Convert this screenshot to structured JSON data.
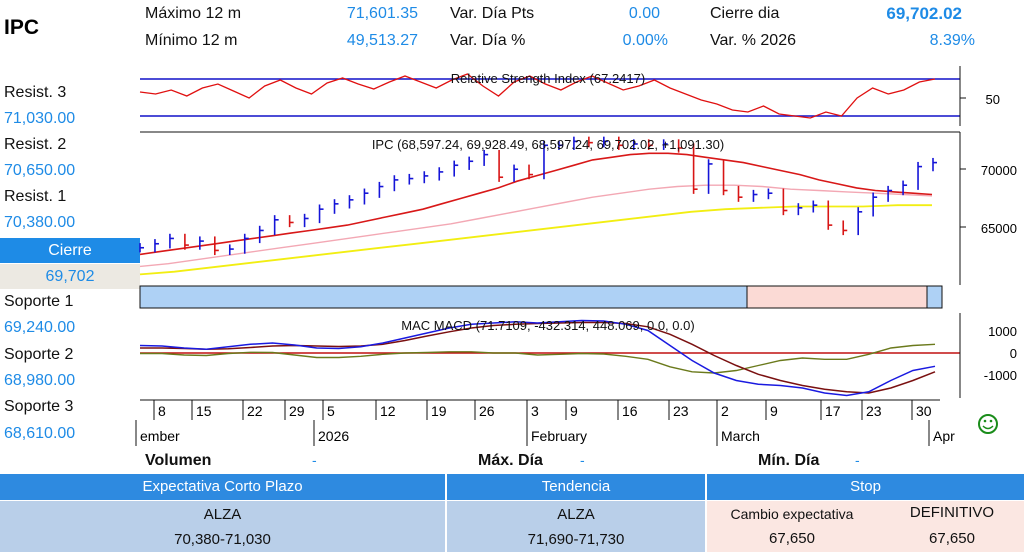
{
  "header": {
    "title": "IPC",
    "max12_label": "Máximo 12 m",
    "max12_value": "71,601.35",
    "min12_label": "Mínimo 12 m",
    "min12_value": "49,513.27",
    "vdp_label": "Var. Día Pts",
    "vdp_value": "0.00",
    "vdpct_label": "Var. Día %",
    "vdpct_value": "0.00%",
    "cierre_label": "Cierre dia",
    "cierre_value": "69,702.02",
    "var2026_label": "Var. % 2026",
    "var2026_value": "8.39%"
  },
  "sidebar": {
    "r3_label": "Resist. 3",
    "r3_value": "71,030.00",
    "r2_label": "Resist. 2",
    "r2_value": "70,650.00",
    "r1_label": "Resist. 1",
    "r1_value": "70,380.00",
    "cierre_label": "Cierre",
    "cierre_value": "69,702",
    "s1_label": "Soporte 1",
    "s1_value": "69,240.00",
    "s2_label": "Soporte 2",
    "s2_value": "68,980.00",
    "s3_label": "Soporte 3",
    "s3_value": "68,610.00"
  },
  "footer": {
    "volumen_label": "Volumen",
    "volumen_value": "-",
    "maxdia_label": "Máx. Día",
    "maxdia_value": "-",
    "mindia_label": "Mín. Día",
    "mindia_value": "-"
  },
  "bottom": {
    "h1": "Expectativa Corto Plazo",
    "h2": "Tendencia",
    "h3": "Stop",
    "c1_line1": "ALZA",
    "c1_line2": "70,380-71,030",
    "c2_line1": "ALZA",
    "c2_line2": "71,690-71,730",
    "c3_label1": "Cambio expectativa",
    "c3_label2": "DEFINITIVO",
    "c3_val1": "67,650",
    "c3_val2": "67,650"
  },
  "chart_data": [
    {
      "type": "line",
      "title": "Relative Strength Index (67.2417)",
      "ylim": [
        20,
        80
      ],
      "y_ticks": [
        50
      ],
      "levels": [
        70,
        30
      ],
      "series": [
        {
          "values": [
            54,
            52,
            56,
            50,
            58,
            62,
            55,
            48,
            60,
            66,
            58,
            52,
            63,
            68,
            62,
            57,
            64,
            70,
            64,
            58,
            66,
            72,
            60,
            50,
            64,
            70,
            62,
            56,
            64,
            70,
            63,
            56,
            60,
            66,
            58,
            52,
            46,
            42,
            36,
            34,
            40,
            32,
            30,
            28,
            34,
            30,
            48,
            58,
            52,
            56,
            64,
            67
          ]
        }
      ]
    },
    {
      "type": "line",
      "title": "IPC (68,597.24, 69,928.49, 68,597.24, 69,702.02, +1,091.30)",
      "ylim": [
        60500,
        72000
      ],
      "y_ticks": [
        65000,
        70000
      ],
      "series": [
        {
          "values": [
            63300,
            63600,
            64000,
            63500,
            63800,
            63100,
            63200,
            64000,
            64600,
            65400,
            65200,
            65500,
            66200,
            66600,
            66900,
            67400,
            67900,
            68400,
            68500,
            68700,
            69000,
            69500,
            69800,
            70300,
            68600,
            69200,
            68800,
            71000,
            71000,
            71300,
            71200,
            71300,
            71000,
            71100,
            71000,
            71100,
            70800,
            67700,
            69600,
            67600,
            67100,
            67300,
            67400,
            66100,
            66300,
            66500,
            65000,
            64600,
            66000,
            67100,
            67600,
            68000,
            69400,
            69700
          ]
        },
        {
          "values": [
            62800,
            63000,
            63200,
            63400,
            63600,
            63800,
            64000,
            64200,
            64400,
            64600,
            64800,
            65000,
            65300,
            65600,
            65900,
            66200,
            66600,
            67000,
            67400,
            67800,
            68300,
            68700,
            69100,
            69500,
            69900,
            70100,
            70300,
            70400,
            70400,
            70300,
            70100,
            69900,
            69700,
            69400,
            69100,
            68800,
            68400,
            68100,
            67800,
            67600,
            67500,
            67400,
            67300
          ]
        },
        {
          "values": [
            61900,
            62100,
            62400,
            62700,
            63000,
            63300,
            63600,
            63900,
            64200,
            64500,
            64800,
            65100,
            65500,
            65900,
            66300,
            66700,
            67100,
            67400,
            67700,
            67900,
            68000,
            68000,
            67900,
            67700,
            67600,
            67500,
            67400,
            67300,
            67200
          ]
        },
        {
          "values": [
            61300,
            61500,
            61800,
            62100,
            62400,
            62700,
            63000,
            63300,
            63600,
            63900,
            64200,
            64500,
            64800,
            65100,
            65400,
            65700,
            66000,
            66200,
            66300,
            66400,
            66400,
            66400,
            66500,
            66500
          ]
        }
      ]
    },
    {
      "type": "line",
      "title": "MAC MACD (71.7109, -432.314, 448.069, 0.0, 0.0)",
      "ylim": [
        -1700,
        1700
      ],
      "y_ticks": [
        1000,
        0,
        -1000
      ],
      "series": [
        {
          "values": [
            400,
            380,
            300,
            250,
            350,
            450,
            500,
            420,
            300,
            280,
            350,
            500,
            700,
            900,
            1100,
            1250,
            1300,
            1350,
            1300,
            1350,
            1400,
            1380,
            1250,
            1000,
            400,
            -200,
            -700,
            -1000,
            -1150,
            -1200,
            -1300,
            -1500,
            -1600,
            -1450,
            -1000,
            -600,
            -432
          ]
        },
        {
          "values": [
            300,
            300,
            280,
            250,
            270,
            320,
            380,
            400,
            380,
            360,
            380,
            450,
            600,
            780,
            950,
            1100,
            1200,
            1250,
            1280,
            1300,
            1320,
            1320,
            1280,
            1150,
            850,
            450,
            0,
            -400,
            -750,
            -1000,
            -1200,
            -1350,
            -1450,
            -1500,
            -1300,
            -1000,
            -650
          ]
        },
        {
          "values": [
            80,
            80,
            20,
            0,
            80,
            130,
            120,
            20,
            -80,
            -80,
            -30,
            50,
            100,
            120,
            150,
            150,
            100,
            100,
            20,
            50,
            80,
            60,
            -30,
            -150,
            -450,
            -650,
            -700,
            -600,
            -400,
            -200,
            -100,
            -150,
            -150,
            50,
            300,
            400,
            448
          ]
        }
      ]
    }
  ],
  "axis": {
    "day_ticks": [
      "8",
      "15",
      "22",
      "29",
      "5",
      "12",
      "19",
      "26",
      "3",
      "9",
      "16",
      "23",
      "2",
      "9",
      "17",
      "23",
      "30"
    ],
    "month_labels": [
      "ember",
      "2026",
      "February",
      "March",
      "Apr"
    ]
  },
  "colors": {
    "accent": "#1e8be6",
    "header_bg": "#2e8ae0",
    "cell_bg": "#b9cfe9",
    "stop_bg": "#fbe7e2"
  },
  "icons": {
    "smiley": "smiley-icon"
  }
}
